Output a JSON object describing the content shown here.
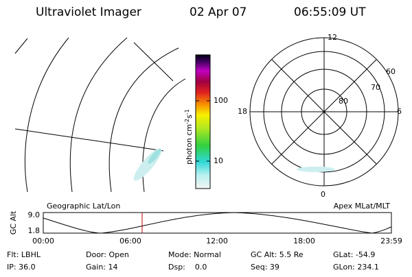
{
  "header": {
    "title": "Ultraviolet Imager",
    "date": "02 Apr 07",
    "time": "06:55:09 UT"
  },
  "colorbar": {
    "label": {
      "unit1": "photon cm",
      "exp1": "-2",
      "unit2": "s",
      "exp2": "-1"
    },
    "ticks": [
      "100",
      "10"
    ]
  },
  "polar": {
    "mlt_labels": [
      "12",
      "18",
      "6",
      "0"
    ],
    "lat_labels": [
      "60",
      "70",
      "80"
    ]
  },
  "projections": {
    "left": "Geographic Lat/Lon",
    "right": "Apex MLat/MLT"
  },
  "altitude": {
    "axis_label": "GC Alt",
    "y_labels": [
      "9.0",
      "1.8"
    ],
    "x_labels": [
      "00:00",
      "06:00",
      "12:00",
      "18:00",
      "23:59"
    ]
  },
  "footer": {
    "rows": [
      [
        "Flt: LBHL",
        "Door: Open",
        "Mode: Normal",
        "GC Alt: 5.5 Re",
        "GLat: -54.9"
      ],
      [
        "IP: 36.0",
        "Gain: 14",
        "Dsp:    0.0",
        "Seq: 39",
        "GLon: 234.1"
      ]
    ]
  }
}
